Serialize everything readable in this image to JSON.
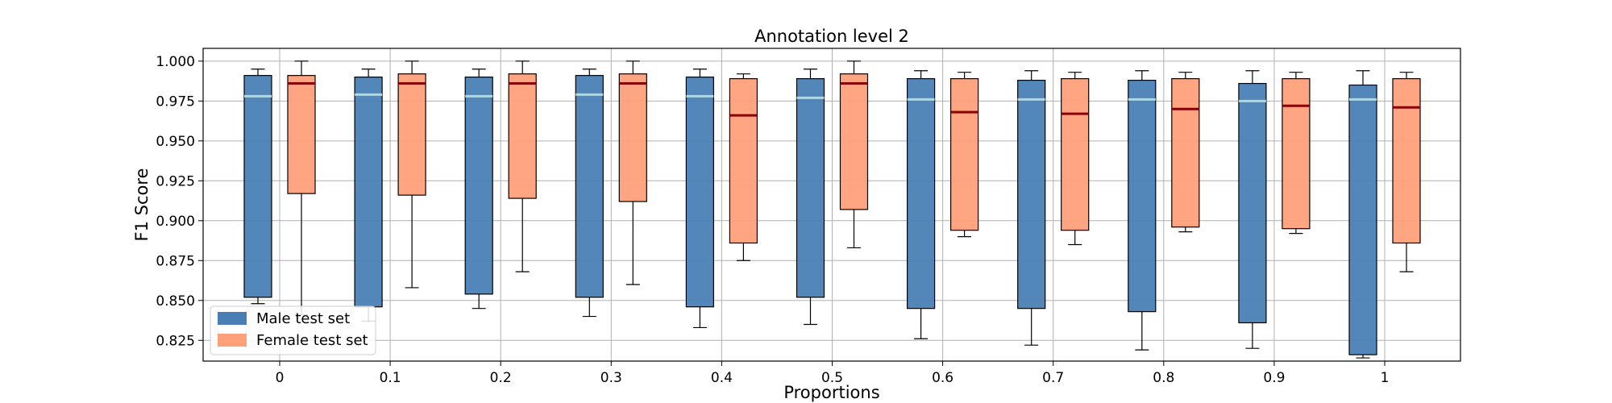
{
  "chart_data": {
    "type": "box",
    "title": "Annotation level 2",
    "xlabel": "Proportions",
    "ylabel": "F1 Score",
    "categories": [
      "0",
      "0.1",
      "0.2",
      "0.3",
      "0.4",
      "0.5",
      "0.6",
      "0.7",
      "0.8",
      "0.9",
      "1"
    ],
    "ylim": [
      0.812,
      1.008
    ],
    "yticks": [
      "0.825",
      "0.850",
      "0.875",
      "0.900",
      "0.925",
      "0.950",
      "0.975",
      "1.000"
    ],
    "grid": true,
    "legend_position": "lower-left",
    "series": [
      {
        "name": "Male test set",
        "color": "#4a7fb5",
        "median_color": "#add8e6",
        "boxes": [
          {
            "whisker_low": 0.848,
            "q1": 0.852,
            "median": 0.978,
            "q3": 0.991,
            "whisker_high": 0.995
          },
          {
            "whisker_low": 0.837,
            "q1": 0.846,
            "median": 0.979,
            "q3": 0.99,
            "whisker_high": 0.995
          },
          {
            "whisker_low": 0.845,
            "q1": 0.854,
            "median": 0.978,
            "q3": 0.99,
            "whisker_high": 0.995
          },
          {
            "whisker_low": 0.84,
            "q1": 0.852,
            "median": 0.979,
            "q3": 0.991,
            "whisker_high": 0.995
          },
          {
            "whisker_low": 0.833,
            "q1": 0.846,
            "median": 0.978,
            "q3": 0.99,
            "whisker_high": 0.995
          },
          {
            "whisker_low": 0.835,
            "q1": 0.852,
            "median": 0.977,
            "q3": 0.989,
            "whisker_high": 0.995
          },
          {
            "whisker_low": 0.826,
            "q1": 0.845,
            "median": 0.976,
            "q3": 0.989,
            "whisker_high": 0.994
          },
          {
            "whisker_low": 0.822,
            "q1": 0.845,
            "median": 0.976,
            "q3": 0.988,
            "whisker_high": 0.994
          },
          {
            "whisker_low": 0.819,
            "q1": 0.843,
            "median": 0.976,
            "q3": 0.988,
            "whisker_high": 0.994
          },
          {
            "whisker_low": 0.82,
            "q1": 0.836,
            "median": 0.975,
            "q3": 0.986,
            "whisker_high": 0.994
          },
          {
            "whisker_low": 0.814,
            "q1": 0.816,
            "median": 0.976,
            "q3": 0.985,
            "whisker_high": 0.994
          }
        ]
      },
      {
        "name": "Female test set",
        "color": "#ffa07a",
        "median_color": "#8b0000",
        "boxes": [
          {
            "whisker_low": 0.841,
            "q1": 0.917,
            "median": 0.986,
            "q3": 0.991,
            "whisker_high": 1.0
          },
          {
            "whisker_low": 0.858,
            "q1": 0.916,
            "median": 0.986,
            "q3": 0.992,
            "whisker_high": 1.0
          },
          {
            "whisker_low": 0.868,
            "q1": 0.914,
            "median": 0.986,
            "q3": 0.992,
            "whisker_high": 1.0
          },
          {
            "whisker_low": 0.86,
            "q1": 0.912,
            "median": 0.986,
            "q3": 0.992,
            "whisker_high": 1.0
          },
          {
            "whisker_low": 0.875,
            "q1": 0.886,
            "median": 0.966,
            "q3": 0.989,
            "whisker_high": 0.992
          },
          {
            "whisker_low": 0.883,
            "q1": 0.907,
            "median": 0.986,
            "q3": 0.992,
            "whisker_high": 1.0
          },
          {
            "whisker_low": 0.89,
            "q1": 0.894,
            "median": 0.968,
            "q3": 0.989,
            "whisker_high": 0.993
          },
          {
            "whisker_low": 0.885,
            "q1": 0.894,
            "median": 0.967,
            "q3": 0.989,
            "whisker_high": 0.993
          },
          {
            "whisker_low": 0.893,
            "q1": 0.896,
            "median": 0.97,
            "q3": 0.989,
            "whisker_high": 0.993
          },
          {
            "whisker_low": 0.892,
            "q1": 0.895,
            "median": 0.972,
            "q3": 0.989,
            "whisker_high": 0.993
          },
          {
            "whisker_low": 0.868,
            "q1": 0.886,
            "median": 0.971,
            "q3": 0.989,
            "whisker_high": 0.993
          }
        ]
      }
    ]
  }
}
